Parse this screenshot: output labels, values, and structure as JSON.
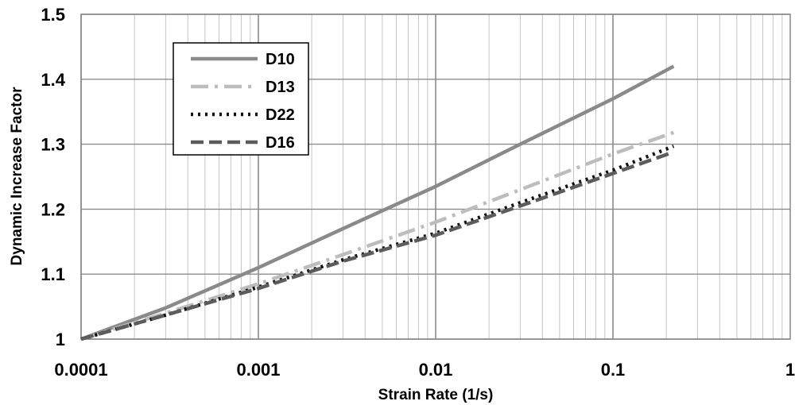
{
  "chart_data": {
    "type": "line",
    "title": "",
    "xlabel": "Strain Rate (1/s)",
    "ylabel": "Dynamic Increase Factor",
    "xscale": "log",
    "xlim": [
      0.0001,
      1
    ],
    "ylim": [
      1,
      1.5
    ],
    "x_tick_labels": [
      "0.0001",
      "0.001",
      "0.01",
      "0.1",
      "1"
    ],
    "y_tick_labels": [
      "1",
      "1.1",
      "1.2",
      "1.3",
      "1.4",
      "1.5"
    ],
    "grid": true,
    "legend_position": "top-left",
    "series": [
      {
        "name": "D10",
        "color": "#8a8a8a",
        "style": "solid",
        "x": [
          0.0001,
          0.0003,
          0.001,
          0.003,
          0.01,
          0.03,
          0.1,
          0.22
        ],
        "y": [
          1.0,
          1.048,
          1.11,
          1.17,
          1.235,
          1.3,
          1.37,
          1.42
        ]
      },
      {
        "name": "D13",
        "color": "#bdbdbd",
        "style": "dashdot",
        "x": [
          0.0001,
          0.0003,
          0.001,
          0.003,
          0.01,
          0.03,
          0.1,
          0.22
        ],
        "y": [
          1.0,
          1.04,
          1.085,
          1.13,
          1.18,
          1.23,
          1.285,
          1.318
        ]
      },
      {
        "name": "D22",
        "color": "#111111",
        "style": "dotted",
        "x": [
          0.0001,
          0.0003,
          0.001,
          0.003,
          0.01,
          0.03,
          0.1,
          0.22
        ],
        "y": [
          1.0,
          1.037,
          1.08,
          1.122,
          1.163,
          1.21,
          1.26,
          1.297
        ]
      },
      {
        "name": "D16",
        "color": "#5c5c5c",
        "style": "dashed",
        "x": [
          0.0001,
          0.0003,
          0.001,
          0.003,
          0.01,
          0.03,
          0.1,
          0.22
        ],
        "y": [
          1.0,
          1.037,
          1.078,
          1.12,
          1.16,
          1.205,
          1.255,
          1.288
        ]
      }
    ]
  }
}
